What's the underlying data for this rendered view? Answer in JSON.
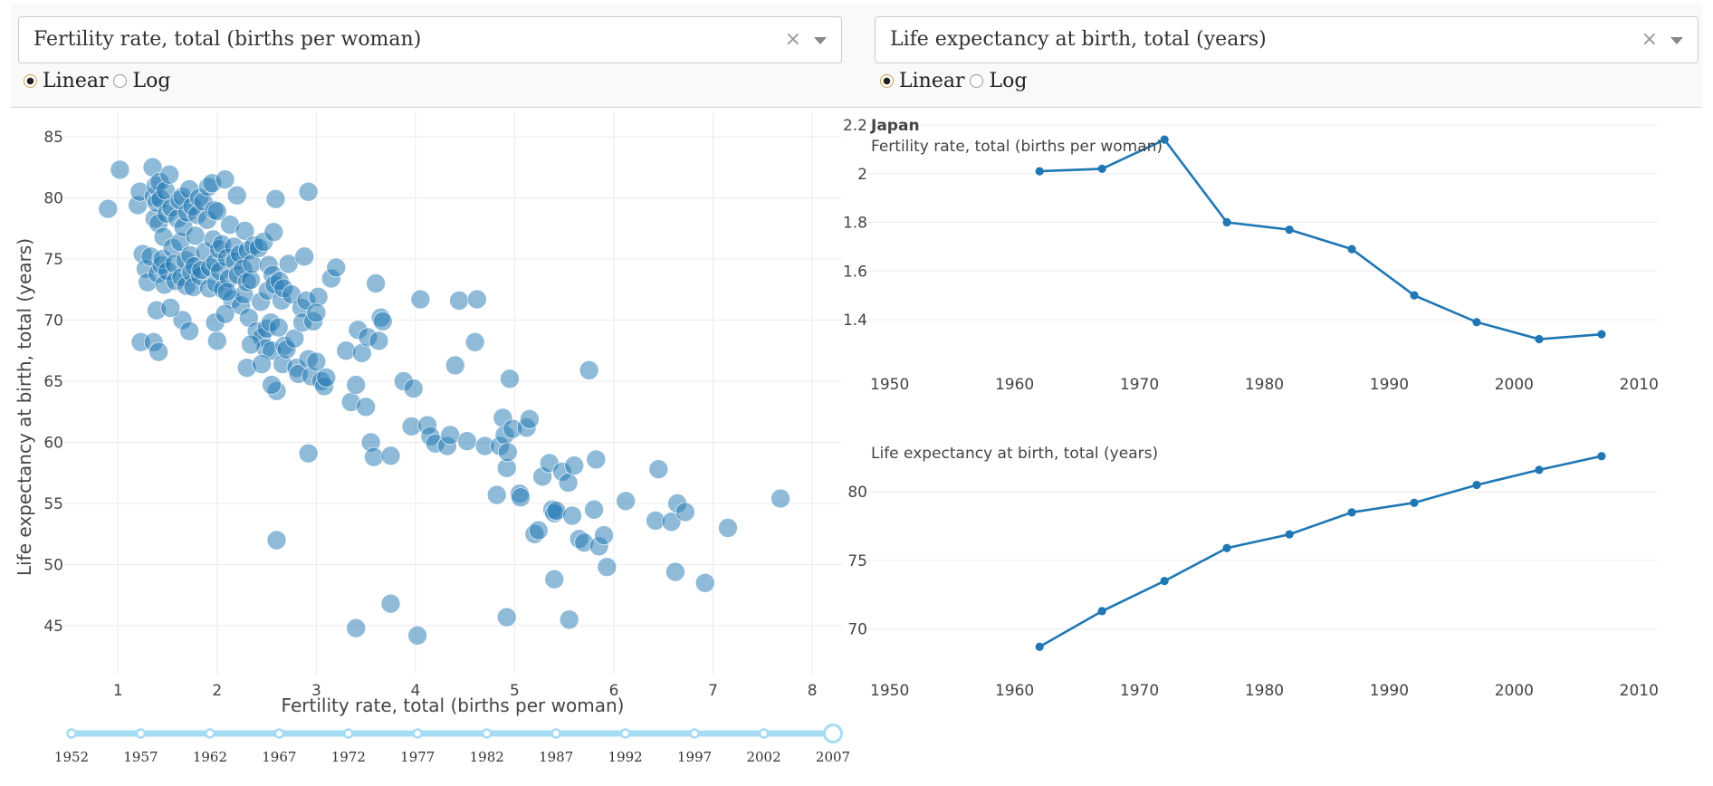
{
  "controls": {
    "left": {
      "dropdown_value": "Fertility rate, total (births per woman)",
      "radios": [
        {
          "label": "Linear",
          "checked": true
        },
        {
          "label": "Log",
          "checked": false
        }
      ]
    },
    "right": {
      "dropdown_value": "Life expectancy at birth, total (years)",
      "radios": [
        {
          "label": "Linear",
          "checked": true
        },
        {
          "label": "Log",
          "checked": false
        }
      ]
    }
  },
  "colors": {
    "marker": "#1f77b4",
    "line": "#1f77b4",
    "slider": "#a5dcf3"
  },
  "chart_data": [
    {
      "type": "scatter",
      "xlabel": "Fertility rate, total (births per woman)",
      "ylabel": "Life expectancy at birth, total (years)",
      "xlim": [
        0.45,
        8.3
      ],
      "ylim": [
        41,
        87
      ],
      "xticks": [
        1,
        2,
        3,
        4,
        5,
        6,
        7,
        8
      ],
      "yticks": [
        45,
        50,
        55,
        60,
        65,
        70,
        75,
        80,
        85
      ],
      "grid": true,
      "points": [
        [
          0.9,
          79.1
        ],
        [
          1.02,
          82.3
        ],
        [
          1.2,
          79.4
        ],
        [
          1.22,
          80.5
        ],
        [
          1.25,
          75.4
        ],
        [
          1.28,
          74.2
        ],
        [
          1.3,
          73.1
        ],
        [
          1.33,
          75.2
        ],
        [
          1.35,
          82.5
        ],
        [
          1.36,
          80.1
        ],
        [
          1.37,
          78.3
        ],
        [
          1.38,
          81.0
        ],
        [
          1.39,
          79.6
        ],
        [
          1.4,
          73.8
        ],
        [
          1.41,
          77.9
        ],
        [
          1.42,
          81.3
        ],
        [
          1.43,
          79.9
        ],
        [
          1.44,
          74.5
        ],
        [
          1.45,
          75.0
        ],
        [
          1.46,
          76.8
        ],
        [
          1.47,
          72.9
        ],
        [
          1.48,
          80.6
        ],
        [
          1.49,
          78.7
        ],
        [
          1.5,
          74.0
        ],
        [
          1.52,
          81.9
        ],
        [
          1.54,
          79.2
        ],
        [
          1.55,
          75.9
        ],
        [
          1.57,
          74.6
        ],
        [
          1.58,
          73.2
        ],
        [
          1.6,
          78.3
        ],
        [
          1.62,
          79.8
        ],
        [
          1.63,
          76.4
        ],
        [
          1.64,
          73.5
        ],
        [
          1.65,
          80.1
        ],
        [
          1.66,
          77.6
        ],
        [
          1.68,
          74.9
        ],
        [
          1.69,
          72.8
        ],
        [
          1.7,
          78.8
        ],
        [
          1.72,
          80.7
        ],
        [
          1.73,
          75.3
        ],
        [
          1.74,
          73.9
        ],
        [
          1.75,
          79.3
        ],
        [
          1.76,
          72.7
        ],
        [
          1.77,
          74.4
        ],
        [
          1.78,
          76.9
        ],
        [
          1.8,
          78.6
        ],
        [
          1.82,
          80.0
        ],
        [
          1.83,
          73.6
        ],
        [
          1.84,
          74.1
        ],
        [
          1.86,
          79.7
        ],
        [
          1.88,
          75.6
        ],
        [
          1.9,
          78.2
        ],
        [
          1.91,
          80.9
        ],
        [
          1.92,
          72.6
        ],
        [
          1.93,
          74.3
        ],
        [
          1.95,
          81.2
        ],
        [
          1.96,
          76.6
        ],
        [
          1.97,
          79.0
        ],
        [
          1.98,
          74.7
        ],
        [
          1.99,
          73.0
        ],
        [
          2.0,
          78.9
        ],
        [
          2.02,
          75.8
        ],
        [
          2.03,
          74.0
        ],
        [
          2.05,
          76.2
        ],
        [
          2.06,
          72.5
        ],
        [
          2.08,
          81.5
        ],
        [
          2.1,
          75.1
        ],
        [
          2.12,
          73.4
        ],
        [
          2.13,
          77.8
        ],
        [
          2.15,
          71.7
        ],
        [
          2.17,
          76.0
        ],
        [
          2.18,
          74.8
        ],
        [
          2.2,
          80.2
        ],
        [
          2.21,
          73.7
        ],
        [
          2.23,
          75.4
        ],
        [
          2.24,
          71.2
        ],
        [
          2.26,
          74.2
        ],
        [
          2.27,
          72.1
        ],
        [
          2.28,
          77.3
        ],
        [
          2.3,
          73.1
        ],
        [
          2.31,
          75.7
        ],
        [
          2.32,
          70.2
        ],
        [
          2.34,
          73.3
        ],
        [
          2.35,
          74.6
        ],
        [
          2.37,
          76.1
        ],
        [
          2.4,
          69.1
        ],
        [
          2.42,
          75.9
        ],
        [
          2.44,
          71.5
        ],
        [
          2.45,
          68.6
        ],
        [
          2.47,
          76.4
        ],
        [
          2.49,
          67.7
        ],
        [
          2.5,
          69.3
        ],
        [
          2.51,
          72.4
        ],
        [
          2.52,
          74.5
        ],
        [
          2.54,
          69.8
        ],
        [
          2.55,
          67.5
        ],
        [
          2.56,
          73.7
        ],
        [
          2.57,
          77.2
        ],
        [
          2.58,
          72.9
        ],
        [
          2.6,
          64.2
        ],
        [
          2.62,
          69.4
        ],
        [
          2.63,
          73.2
        ],
        [
          2.65,
          71.6
        ],
        [
          2.66,
          66.4
        ],
        [
          2.67,
          72.6
        ],
        [
          2.68,
          67.9
        ],
        [
          2.7,
          67.6
        ],
        [
          2.72,
          74.6
        ],
        [
          2.75,
          72.1
        ],
        [
          2.78,
          68.5
        ],
        [
          2.8,
          66.1
        ],
        [
          2.82,
          65.6
        ],
        [
          2.85,
          71.0
        ],
        [
          2.86,
          69.8
        ],
        [
          2.88,
          75.2
        ],
        [
          2.9,
          71.6
        ],
        [
          2.92,
          66.8
        ],
        [
          2.95,
          65.4
        ],
        [
          2.97,
          69.9
        ],
        [
          3.0,
          66.6
        ],
        [
          3.02,
          71.9
        ],
        [
          3.05,
          65.0
        ],
        [
          3.08,
          64.6
        ],
        [
          3.1,
          65.3
        ],
        [
          3.15,
          73.4
        ],
        [
          3.2,
          74.3
        ],
        [
          3.3,
          67.5
        ],
        [
          3.35,
          63.3
        ],
        [
          3.4,
          64.7
        ],
        [
          3.42,
          69.2
        ],
        [
          3.46,
          67.3
        ],
        [
          3.5,
          62.9
        ],
        [
          3.52,
          68.6
        ],
        [
          3.55,
          60.0
        ],
        [
          3.58,
          58.8
        ],
        [
          3.6,
          73.0
        ],
        [
          3.63,
          68.3
        ],
        [
          3.65,
          70.2
        ],
        [
          3.67,
          69.9
        ],
        [
          3.75,
          58.9
        ],
        [
          3.88,
          65.0
        ],
        [
          3.96,
          61.3
        ],
        [
          3.98,
          64.4
        ],
        [
          4.05,
          71.7
        ],
        [
          4.12,
          61.4
        ],
        [
          4.15,
          60.5
        ],
        [
          4.2,
          59.9
        ],
        [
          4.32,
          59.7
        ],
        [
          4.35,
          60.6
        ],
        [
          4.4,
          66.3
        ],
        [
          4.44,
          71.6
        ],
        [
          4.52,
          60.1
        ],
        [
          4.6,
          68.2
        ],
        [
          4.62,
          71.7
        ],
        [
          4.7,
          59.7
        ],
        [
          4.82,
          55.7
        ],
        [
          4.85,
          59.7
        ],
        [
          4.88,
          62.0
        ],
        [
          4.9,
          60.6
        ],
        [
          4.92,
          57.9
        ],
        [
          4.93,
          59.2
        ],
        [
          4.95,
          65.2
        ],
        [
          4.98,
          61.1
        ],
        [
          5.05,
          55.8
        ],
        [
          5.06,
          55.5
        ],
        [
          5.12,
          61.2
        ],
        [
          5.15,
          61.9
        ],
        [
          5.2,
          52.5
        ],
        [
          5.24,
          52.8
        ],
        [
          5.28,
          57.2
        ],
        [
          5.35,
          58.3
        ],
        [
          5.38,
          54.5
        ],
        [
          5.4,
          54.2
        ],
        [
          5.42,
          54.4
        ],
        [
          5.48,
          57.6
        ],
        [
          5.54,
          56.7
        ],
        [
          5.58,
          54.0
        ],
        [
          5.6,
          58.1
        ],
        [
          5.65,
          52.1
        ],
        [
          5.7,
          51.8
        ],
        [
          5.75,
          65.9
        ],
        [
          5.8,
          54.5
        ],
        [
          5.82,
          58.6
        ],
        [
          5.85,
          51.5
        ],
        [
          5.9,
          52.4
        ],
        [
          5.93,
          49.8
        ],
        [
          6.12,
          55.2
        ],
        [
          6.42,
          53.6
        ],
        [
          6.45,
          57.8
        ],
        [
          6.58,
          53.5
        ],
        [
          6.64,
          55.0
        ],
        [
          6.72,
          54.3
        ],
        [
          6.62,
          49.4
        ],
        [
          6.92,
          48.5
        ],
        [
          7.15,
          53.0
        ],
        [
          7.68,
          55.4
        ],
        [
          2.6,
          52.0
        ],
        [
          2.92,
          59.1
        ],
        [
          3.4,
          44.8
        ],
        [
          3.75,
          46.8
        ],
        [
          4.02,
          44.2
        ],
        [
          4.92,
          45.7
        ],
        [
          5.55,
          45.5
        ],
        [
          5.4,
          48.8
        ],
        [
          1.23,
          68.2
        ],
        [
          1.36,
          68.2
        ],
        [
          1.41,
          67.4
        ],
        [
          1.65,
          70.0
        ],
        [
          1.72,
          69.1
        ],
        [
          2.0,
          68.3
        ],
        [
          2.3,
          66.1
        ],
        [
          2.55,
          64.7
        ],
        [
          2.92,
          80.5
        ],
        [
          2.59,
          79.9
        ],
        [
          1.39,
          70.8
        ],
        [
          1.53,
          71.0
        ],
        [
          1.98,
          69.8
        ],
        [
          2.1,
          72.3
        ],
        [
          2.34,
          68.0
        ],
        [
          2.08,
          70.5
        ],
        [
          2.45,
          66.4
        ],
        [
          3.0,
          70.6
        ]
      ]
    },
    {
      "type": "line",
      "title": "Japan",
      "subtitle": "Fertility rate, total (births per woman)",
      "x": [
        1962,
        1967,
        1972,
        1977,
        1982,
        1987,
        1992,
        1997,
        2002,
        2007
      ],
      "y": [
        2.01,
        2.02,
        2.14,
        1.8,
        1.77,
        1.69,
        1.5,
        1.39,
        1.32,
        1.34
      ],
      "xlim": [
        1948.5,
        2011.5
      ],
      "ylim": [
        1.255,
        2.215
      ],
      "xticks": [
        1950,
        1960,
        1970,
        1980,
        1990,
        2000,
        2010
      ],
      "yticks": [
        1.4,
        1.6,
        1.8,
        2,
        2.2
      ],
      "ytick_labels": [
        "1.4",
        "1.6",
        "1.8",
        "2",
        "2.2"
      ]
    },
    {
      "type": "line",
      "subtitle": "Life expectancy at birth, total (years)",
      "x": [
        1962,
        1967,
        1972,
        1977,
        1982,
        1987,
        1992,
        1997,
        2002,
        2007
      ],
      "y": [
        68.7,
        71.3,
        73.5,
        75.9,
        76.9,
        78.5,
        79.2,
        80.5,
        81.6,
        82.6
      ],
      "xlim": [
        1948.5,
        2011.5
      ],
      "ylim": [
        67.2,
        84.3
      ],
      "xticks": [
        1950,
        1960,
        1970,
        1980,
        1990,
        2000,
        2010
      ],
      "yticks": [
        70,
        75,
        80
      ],
      "ytick_labels": [
        "70",
        "75",
        "80"
      ]
    }
  ],
  "slider": {
    "marks": [
      "1952",
      "1957",
      "1962",
      "1967",
      "1972",
      "1977",
      "1982",
      "1987",
      "1992",
      "1997",
      "2002",
      "2007"
    ],
    "selected": "2007"
  }
}
